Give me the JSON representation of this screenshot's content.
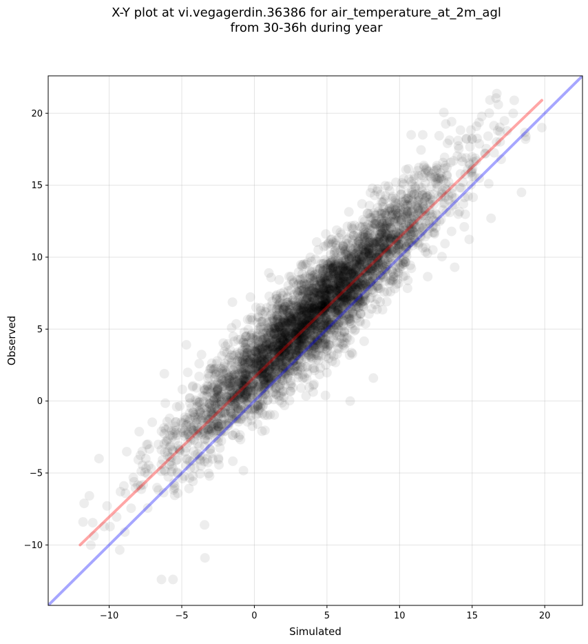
{
  "chart_data": {
    "type": "scatter",
    "title_lines": [
      "X-Y plot at vi.vegagerdin.36386 for air_temperature_at_2m_agl",
      "from 30-36h during year"
    ],
    "xlabel": "Simulated",
    "ylabel": "Observed",
    "xlim": [
      -14.2,
      22.6
    ],
    "ylim": [
      -14.2,
      22.6
    ],
    "xticks": [
      -10,
      -5,
      0,
      5,
      10,
      15,
      20
    ],
    "yticks": [
      -10,
      -5,
      0,
      5,
      10,
      15,
      20
    ],
    "xtick_labels": [
      "−10",
      "−5",
      "0",
      "5",
      "10",
      "15",
      "20"
    ],
    "ytick_labels": [
      "−10",
      "−5",
      "0",
      "5",
      "10",
      "15",
      "20"
    ],
    "grid": true,
    "point_color": "#000000",
    "point_alpha": 0.07,
    "point_cloud": {
      "n_points": 4200,
      "x_range": [
        -12.0,
        19.8
      ],
      "relation": "observed ≈ simulated + 2 (with scatter ≈ 1.7)"
    },
    "highlight_points": [
      {
        "x": -11.8,
        "y": -8.4
      },
      {
        "x": -10.7,
        "y": -4.0
      },
      {
        "x": -6.4,
        "y": -12.4
      },
      {
        "x": -5.6,
        "y": -12.4
      },
      {
        "x": -6.2,
        "y": 1.9
      },
      {
        "x": -3.4,
        "y": -10.9
      },
      {
        "x": -3.8,
        "y": 2.6
      },
      {
        "x": -0.2,
        "y": 5.8
      },
      {
        "x": 1.0,
        "y": 8.9
      },
      {
        "x": 4.4,
        "y": 10.5
      },
      {
        "x": 6.6,
        "y": 0.0
      },
      {
        "x": 8.2,
        "y": 1.6
      },
      {
        "x": 10.8,
        "y": 18.5
      },
      {
        "x": 11.6,
        "y": 18.5
      },
      {
        "x": 13.8,
        "y": 9.3
      },
      {
        "x": 15.3,
        "y": 19.1
      },
      {
        "x": 16.3,
        "y": 12.7
      },
      {
        "x": 16.8,
        "y": 20.6
      },
      {
        "x": 17.0,
        "y": 16.8
      },
      {
        "x": 17.9,
        "y": 20.9
      },
      {
        "x": 18.4,
        "y": 14.5
      },
      {
        "x": 18.7,
        "y": 18.4
      },
      {
        "x": 19.8,
        "y": 19.0
      },
      {
        "x": 14.4,
        "y": 13.7
      }
    ],
    "lines": [
      {
        "kind": "one-to-one",
        "color": "#0000ff",
        "alpha": 0.35,
        "x": [
          -14.2,
          22.6
        ],
        "y": [
          -14.2,
          22.6
        ]
      },
      {
        "kind": "fit",
        "color": "#ff0000",
        "alpha": 0.35,
        "x": [
          -12.0,
          19.8
        ],
        "y": [
          -10.0,
          20.9
        ]
      }
    ]
  }
}
